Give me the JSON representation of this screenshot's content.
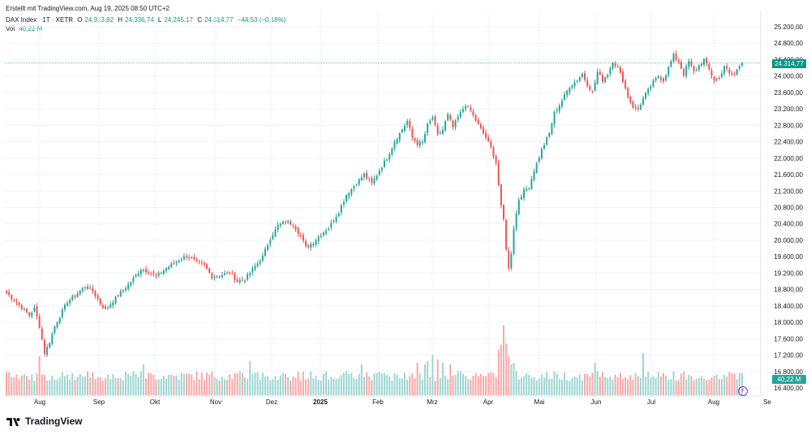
{
  "caption": "Erstellt mit TradingView.com, Aug 19, 2025 08:50 UTC+2",
  "legend": {
    "symbol": "DAX Index · 1T · XETR",
    "o_label": "O",
    "o_value": "24.313,82",
    "h_label": "H",
    "h_value": "24.336,74",
    "l_label": "L",
    "l_value": "24.245,17",
    "c_label": "C",
    "c_value": "24.314,77",
    "change": "−44,53 (−0,18%)",
    "vol_label": "Vol",
    "vol_value": "40,22 M"
  },
  "price_tag": "24.314,77",
  "vol_tag": "40,22 M",
  "brand": "TradingView",
  "colors": {
    "up": "#26a69a",
    "down": "#ef5350",
    "up_vol": "#9ed6d1",
    "down_vol": "#f7a9a7",
    "grid": "#f0f3fa",
    "accent": "#089981"
  },
  "chart_data": {
    "type": "candlestick",
    "y_ticks": [
      "25.200,00",
      "24.800,00",
      "24.400,00",
      "24.000,00",
      "23.600,00",
      "23.200,00",
      "22.800,00",
      "22.400,00",
      "22.000,00",
      "21.600,00",
      "21.200,00",
      "20.800,00",
      "20.400,00",
      "20.000,00",
      "19.600,00",
      "19.200,00",
      "18.800,00",
      "18.400,00",
      "18.000,00",
      "17.600,00",
      "17.200,00",
      "16.800,00",
      "16.400,00"
    ],
    "y_tick_values": [
      25200,
      24800,
      24400,
      24000,
      23600,
      23200,
      22800,
      22400,
      22000,
      21600,
      21200,
      20800,
      20400,
      20000,
      19600,
      19200,
      18800,
      18400,
      18000,
      17600,
      17200,
      16800,
      16400
    ],
    "ylim": [
      16200,
      25300
    ],
    "x_ticks": [
      "Aug",
      "Sep",
      "Okt",
      "Nov",
      "Dez",
      "2025",
      "Feb",
      "Mrz",
      "Apr",
      "Mai",
      "Jun",
      "Jul",
      "Aug",
      "Se"
    ],
    "x_tick_bold": [
      false,
      false,
      false,
      false,
      false,
      true,
      false,
      false,
      false,
      false,
      false,
      false,
      false,
      false
    ],
    "anchors": [
      [
        0,
        18720
      ],
      [
        4,
        18480
      ],
      [
        9,
        18170
      ],
      [
        11,
        18340
      ],
      [
        13,
        17900
      ],
      [
        15,
        17260
      ],
      [
        17,
        17520
      ],
      [
        19,
        17900
      ],
      [
        21,
        18150
      ],
      [
        24,
        18500
      ],
      [
        27,
        18650
      ],
      [
        31,
        18880
      ],
      [
        34,
        18760
      ],
      [
        37,
        18460
      ],
      [
        39,
        18310
      ],
      [
        42,
        18520
      ],
      [
        45,
        18720
      ],
      [
        49,
        18980
      ],
      [
        53,
        19300
      ],
      [
        56,
        19240
      ],
      [
        59,
        19120
      ],
      [
        63,
        19320
      ],
      [
        67,
        19480
      ],
      [
        71,
        19620
      ],
      [
        74,
        19500
      ],
      [
        78,
        19380
      ],
      [
        81,
        19120
      ],
      [
        84,
        19140
      ],
      [
        88,
        19220
      ],
      [
        91,
        19000
      ],
      [
        94,
        19050
      ],
      [
        97,
        19280
      ],
      [
        101,
        19600
      ],
      [
        104,
        20050
      ],
      [
        107,
        20350
      ],
      [
        110,
        20450
      ],
      [
        113,
        20400
      ],
      [
        116,
        20100
      ],
      [
        118,
        19820
      ],
      [
        121,
        19950
      ],
      [
        124,
        20150
      ],
      [
        127,
        20300
      ],
      [
        131,
        20700
      ],
      [
        134,
        21100
      ],
      [
        138,
        21400
      ],
      [
        141,
        21600
      ],
      [
        144,
        21380
      ],
      [
        147,
        21700
      ],
      [
        150,
        22000
      ],
      [
        153,
        22400
      ],
      [
        156,
        22700
      ],
      [
        158,
        22900
      ],
      [
        160,
        22500
      ],
      [
        162,
        22350
      ],
      [
        164,
        22380
      ],
      [
        166,
        22800
      ],
      [
        168,
        23000
      ],
      [
        170,
        22550
      ],
      [
        172,
        22700
      ],
      [
        174,
        23050
      ],
      [
        176,
        22750
      ],
      [
        178,
        23000
      ],
      [
        181,
        23300
      ],
      [
        183,
        23150
      ],
      [
        185,
        22920
      ],
      [
        187,
        22700
      ],
      [
        189,
        22500
      ],
      [
        191,
        22250
      ],
      [
        193,
        21900
      ],
      [
        195,
        20800
      ],
      [
        196,
        20500
      ],
      [
        197,
        19800
      ],
      [
        198,
        19300
      ],
      [
        199,
        19700
      ],
      [
        200,
        20300
      ],
      [
        202,
        21000
      ],
      [
        204,
        21200
      ],
      [
        206,
        21300
      ],
      [
        208,
        21700
      ],
      [
        211,
        22200
      ],
      [
        214,
        22600
      ],
      [
        216,
        23100
      ],
      [
        219,
        23400
      ],
      [
        222,
        23750
      ],
      [
        225,
        23900
      ],
      [
        227,
        24050
      ],
      [
        229,
        23800
      ],
      [
        231,
        23600
      ],
      [
        233,
        24100
      ],
      [
        235,
        23900
      ],
      [
        237,
        24050
      ],
      [
        239,
        24350
      ],
      [
        241,
        24200
      ],
      [
        243,
        23900
      ],
      [
        245,
        23500
      ],
      [
        247,
        23250
      ],
      [
        249,
        23200
      ],
      [
        251,
        23450
      ],
      [
        253,
        23650
      ],
      [
        255,
        23850
      ],
      [
        257,
        24000
      ],
      [
        259,
        23900
      ],
      [
        261,
        24200
      ],
      [
        263,
        24500
      ],
      [
        265,
        24350
      ],
      [
        267,
        24050
      ],
      [
        269,
        24350
      ],
      [
        271,
        24100
      ],
      [
        273,
        24250
      ],
      [
        275,
        24400
      ],
      [
        277,
        24150
      ],
      [
        279,
        23900
      ],
      [
        281,
        23950
      ],
      [
        283,
        24250
      ],
      [
        285,
        24050
      ],
      [
        287,
        24050
      ],
      [
        289,
        24250
      ],
      [
        290,
        24310
      ]
    ],
    "spike_volumes": [
      [
        13,
        2.4
      ],
      [
        54,
        1.9
      ],
      [
        96,
        2.1
      ],
      [
        140,
        1.9
      ],
      [
        162,
        2.0
      ],
      [
        165,
        1.9
      ],
      [
        166,
        2.1
      ],
      [
        168,
        2.5
      ],
      [
        170,
        2.2
      ],
      [
        172,
        2.0
      ],
      [
        175,
        1.9
      ],
      [
        194,
        2.8
      ],
      [
        195,
        3.1
      ],
      [
        196,
        4.3
      ],
      [
        197,
        3.2
      ],
      [
        198,
        2.4
      ],
      [
        199,
        1.9
      ],
      [
        200,
        2.0
      ],
      [
        232,
        2.0
      ],
      [
        251,
        2.6
      ]
    ],
    "last_close": 24314.77,
    "last_volume_m": 40.22
  }
}
